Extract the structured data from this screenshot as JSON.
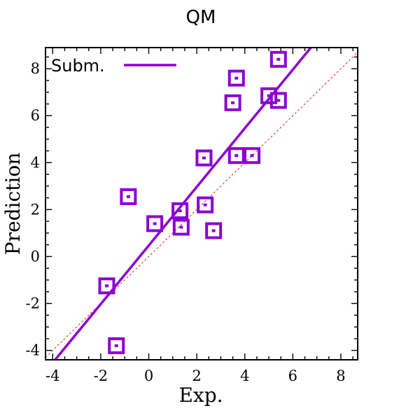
{
  "chart_data": {
    "type": "scatter",
    "title": "QM",
    "xlabel": "Exp.",
    "ylabel": "Prediction",
    "xlim": [
      -4.3,
      8.7
    ],
    "ylim": [
      -4.4,
      8.9
    ],
    "xticks": [
      -4,
      -2,
      0,
      2,
      4,
      6,
      8
    ],
    "yticks": [
      -4,
      -2,
      0,
      2,
      4,
      6,
      8
    ],
    "xtick_labels": [
      "-4",
      "-2",
      "0",
      "2",
      "4",
      "6",
      "8"
    ],
    "ytick_labels": [
      "-4",
      "-2",
      "0",
      "2",
      "4",
      "6",
      "8"
    ],
    "grid": false,
    "legend_position": "top-left",
    "series": [
      {
        "name": "Subm.",
        "color": "#8B00D2",
        "marker": "square",
        "points": [
          {
            "x": -1.75,
            "y": -1.25
          },
          {
            "x": -1.35,
            "y": -3.8
          },
          {
            "x": -0.85,
            "y": 2.55
          },
          {
            "x": 0.25,
            "y": 1.4
          },
          {
            "x": 1.3,
            "y": 1.95
          },
          {
            "x": 1.35,
            "y": 1.25
          },
          {
            "x": 2.35,
            "y": 2.2
          },
          {
            "x": 2.7,
            "y": 1.1
          },
          {
            "x": 2.3,
            "y": 4.2
          },
          {
            "x": 3.5,
            "y": 6.55
          },
          {
            "x": 3.65,
            "y": 7.6
          },
          {
            "x": 3.65,
            "y": 4.3
          },
          {
            "x": 4.3,
            "y": 4.3
          },
          {
            "x": 5.0,
            "y": 6.85
          },
          {
            "x": 5.4,
            "y": 6.65
          },
          {
            "x": 5.4,
            "y": 8.4
          }
        ],
        "fit_line": {
          "x": [
            -3.9,
            6.75
          ],
          "y": [
            -4.4,
            8.9
          ]
        }
      }
    ],
    "reference_line": {
      "color": "#e02020",
      "style": "dashed",
      "x": [
        -4.3,
        8.7
      ],
      "y": [
        -4.3,
        8.7
      ]
    }
  }
}
